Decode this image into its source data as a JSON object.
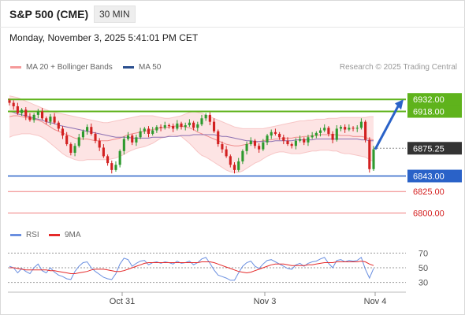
{
  "header": {
    "symbol": "S&P 500 (CME)",
    "timeframe": "30 MIN",
    "datetime": "Monday, November 3, 2025 5:41:01 PM CET"
  },
  "legend": {
    "bollinger_label": "MA 20 + Bollinger Bands",
    "ma50_label": "MA 50",
    "source": "Research © 2025 Trading Central",
    "rsi_label": "RSI",
    "rsi_ma_label": "9MA"
  },
  "colors": {
    "resistance": "#5fb31c",
    "support": "#2a62c8",
    "target": "#ef7f7f",
    "bollinger_fill": "#fde4e4",
    "ma50": "#8b6fb2",
    "up_candle": "#2e9a2e",
    "down_candle": "#d22020",
    "arrow": "#2a62c8",
    "rsi": "#6a8fe0",
    "rsi_ma": "#e52a2a"
  },
  "chart_data": {
    "type": "candlestick",
    "x_ticks": [
      "Oct 31",
      "Nov 3",
      "Nov 4"
    ],
    "y_range": [
      6795,
      6945
    ],
    "last_price": 6875.25,
    "levels": [
      {
        "label": "6932.00",
        "value": 6932.0,
        "kind": "resistance"
      },
      {
        "label": "6918.00",
        "value": 6918.0,
        "kind": "resistance"
      },
      {
        "label": "6875.25",
        "value": 6875.25,
        "kind": "last"
      },
      {
        "label": "6843.00",
        "value": 6843.0,
        "kind": "support"
      },
      {
        "label": "6825.00",
        "value": 6825.0,
        "kind": "target"
      },
      {
        "label": "6800.00",
        "value": 6800.0,
        "kind": "target"
      }
    ],
    "projection": {
      "from": 6874,
      "to": 6932
    },
    "closes": [
      6928,
      6924,
      6916,
      6920,
      6912,
      6908,
      6914,
      6918,
      6910,
      6906,
      6912,
      6905,
      6898,
      6890,
      6880,
      6870,
      6878,
      6888,
      6895,
      6900,
      6892,
      6884,
      6876,
      6866,
      6858,
      6850,
      6856,
      6872,
      6886,
      6890,
      6882,
      6888,
      6895,
      6898,
      6892,
      6896,
      6900,
      6899,
      6902,
      6901,
      6898,
      6904,
      6900,
      6902,
      6905,
      6899,
      6903,
      6910,
      6914,
      6906,
      6895,
      6880,
      6874,
      6866,
      6856,
      6850,
      6860,
      6872,
      6880,
      6884,
      6878,
      6874,
      6882,
      6890,
      6894,
      6892,
      6888,
      6884,
      6880,
      6878,
      6884,
      6886,
      6882,
      6888,
      6890,
      6893,
      6896,
      6899,
      6892,
      6885,
      6898,
      6900,
      6897,
      6899,
      6898,
      6899,
      6906,
      6885,
      6851,
      6874
    ],
    "ma20": [
      6912,
      6913,
      6913,
      6912,
      6911,
      6910,
      6909,
      6908,
      6906,
      6903,
      6900,
      6897,
      6895,
      6893,
      6891,
      6889,
      6887,
      6886,
      6886,
      6886,
      6885,
      6884,
      6884,
      6884,
      6884,
      6885,
      6886,
      6887,
      6889,
      6891,
      6892,
      6893,
      6894,
      6895,
      6896,
      6897,
      6898,
      6899,
      6899,
      6900,
      6901,
      6901,
      6901,
      6900,
      6899,
      6897,
      6894,
      6892,
      6890,
      6888,
      6886,
      6884,
      6882,
      6880,
      6879,
      6878,
      6878,
      6879,
      6880,
      6881,
      6882,
      6883,
      6884,
      6885,
      6885,
      6886,
      6886,
      6887,
      6887,
      6887,
      6888,
      6888,
      6889,
      6889,
      6890,
      6890,
      6891,
      6891,
      6891,
      6891,
      6891,
      6890,
      6890,
      6890,
      6889,
      6889,
      6889,
      6888,
      6886,
      6885
    ],
    "upper": [
      6936,
      6935,
      6934,
      6932,
      6930,
      6928,
      6926,
      6924,
      6922,
      6920,
      6918,
      6917,
      6916,
      6915,
      6914,
      6913,
      6912,
      6911,
      6910,
      6909,
      6908,
      6907,
      6906,
      6905,
      6905,
      6906,
      6907,
      6908,
      6909,
      6910,
      6911,
      6912,
      6913,
      6913,
      6913,
      6913,
      6912,
      6911,
      6910,
      6910,
      6911,
      6912,
      6913,
      6915,
      6917,
      6918,
      6917,
      6916,
      6914,
      6912,
      6910,
      6908,
      6906,
      6904,
      6902,
      6900,
      6899,
      6898,
      6898,
      6898,
      6898,
      6898,
      6898,
      6899,
      6900,
      6901,
      6902,
      6903,
      6904,
      6905,
      6906,
      6907,
      6907,
      6908,
      6908,
      6909,
      6909,
      6909,
      6910,
      6910,
      6910,
      6911,
      6911,
      6911,
      6911,
      6911,
      6911,
      6911,
      6912,
      6912
    ],
    "lower": [
      6888,
      6890,
      6891,
      6892,
      6892,
      6892,
      6891,
      6890,
      6888,
      6885,
      6881,
      6877,
      6873,
      6869,
      6866,
      6864,
      6862,
      6861,
      6861,
      6862,
      6862,
      6862,
      6862,
      6862,
      6862,
      6863,
      6864,
      6866,
      6868,
      6871,
      6873,
      6875,
      6876,
      6877,
      6879,
      6881,
      6884,
      6887,
      6888,
      6890,
      6891,
      6890,
      6889,
      6885,
      6881,
      6876,
      6871,
      6867,
      6865,
      6862,
      6859,
      6856,
      6853,
      6850,
      6848,
      6847,
      6847,
      6849,
      6852,
      6855,
      6858,
      6860,
      6863,
      6866,
      6868,
      6870,
      6871,
      6871,
      6870,
      6869,
      6869,
      6869,
      6870,
      6871,
      6872,
      6872,
      6873,
      6873,
      6873,
      6872,
      6872,
      6870,
      6869,
      6869,
      6868,
      6867,
      6866,
      6865,
      6862,
      6860
    ],
    "ma50": [
      6918,
      6917,
      6915,
      6914,
      6913,
      6912,
      6910,
      6909,
      6908,
      6906,
      6905,
      6904,
      6902,
      6901,
      6900,
      6899,
      6898,
      6897,
      6896,
      6895,
      6894,
      6893,
      6892,
      6891,
      6890,
      6889,
      6888,
      6888,
      6888,
      6888,
      6887,
      6887,
      6887,
      6887,
      6887,
      6888,
      6888,
      6888,
      6888,
      6889,
      6889,
      6889,
      6890,
      6890,
      6890,
      6891,
      6891,
      6891,
      6891,
      6891,
      6891,
      6890,
      6889,
      6889,
      6888,
      6887,
      6886,
      6885,
      6884,
      6884,
      6883,
      6883,
      6883,
      6883,
      6883,
      6884,
      6884,
      6884,
      6884,
      6884,
      6885,
      6885,
      6885,
      6885,
      6885,
      6886,
      6886,
      6886,
      6886,
      6886,
      6886,
      6886,
      6886,
      6886,
      6886,
      6886,
      6885,
      6885,
      6884,
      6884
    ],
    "rsi": {
      "y_ticks": [
        70,
        50,
        30
      ],
      "y_range": [
        20,
        80
      ],
      "rsi": [
        52,
        50,
        43,
        49,
        45,
        42,
        50,
        55,
        46,
        43,
        50,
        44,
        40,
        38,
        35,
        34,
        45,
        52,
        57,
        58,
        50,
        45,
        41,
        37,
        35,
        34,
        42,
        55,
        63,
        61,
        52,
        56,
        59,
        60,
        54,
        57,
        58,
        56,
        58,
        57,
        55,
        59,
        56,
        57,
        59,
        54,
        57,
        62,
        64,
        56,
        47,
        40,
        38,
        36,
        33,
        33,
        43,
        52,
        57,
        59,
        52,
        49,
        55,
        60,
        61,
        58,
        55,
        52,
        49,
        48,
        54,
        56,
        52,
        56,
        58,
        59,
        62,
        64,
        56,
        50,
        60,
        61,
        58,
        60,
        59,
        60,
        64,
        48,
        36,
        49
      ],
      "ma": [
        50,
        50,
        49,
        48,
        47,
        47,
        47,
        47,
        47,
        47,
        46,
        46,
        45,
        44,
        43,
        42,
        42,
        43,
        44,
        45,
        47,
        48,
        48,
        48,
        47,
        46,
        45,
        45,
        46,
        48,
        50,
        52,
        54,
        56,
        57,
        57,
        57,
        57,
        57,
        57,
        57,
        57,
        57,
        57,
        57,
        57,
        57,
        58,
        58,
        58,
        57,
        55,
        53,
        51,
        49,
        47,
        45,
        44,
        43,
        44,
        46,
        48,
        50,
        52,
        54,
        55,
        55,
        55,
        54,
        53,
        53,
        53,
        53,
        54,
        54,
        55,
        56,
        57,
        57,
        57,
        58,
        58,
        58,
        58,
        58,
        58,
        59,
        58,
        55,
        53
      ]
    }
  }
}
